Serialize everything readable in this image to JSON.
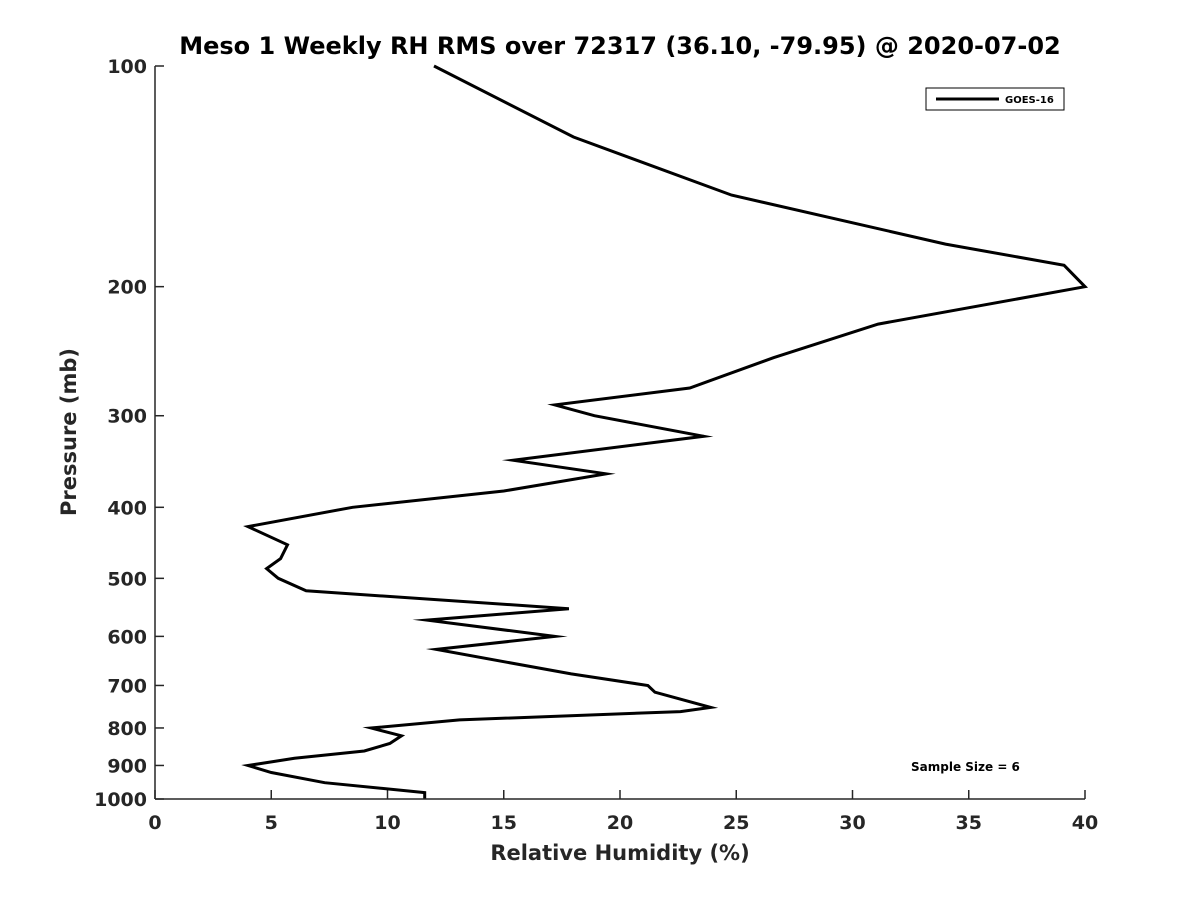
{
  "chart_data": {
    "type": "line",
    "title": "Meso 1 Weekly RH RMS over 72317 (36.10, -79.95) @ 2020-07-02",
    "xlabel": "Relative Humidity (%)",
    "ylabel": "Pressure (mb)",
    "xlim": [
      0,
      40
    ],
    "ylim": [
      100,
      1000
    ],
    "y_scale": "log",
    "y_reversed": true,
    "x_ticks": [
      0,
      5,
      10,
      15,
      20,
      25,
      30,
      35,
      40
    ],
    "x_tick_labels": [
      "0",
      "5",
      "10",
      "15",
      "20",
      "25",
      "30",
      "35",
      "40"
    ],
    "y_ticks": [
      100,
      200,
      300,
      400,
      500,
      600,
      700,
      800,
      900,
      1000
    ],
    "y_tick_labels": [
      "100",
      "200",
      "300",
      "400",
      "500",
      "600",
      "700",
      "800",
      "900",
      "1000"
    ],
    "grid": false,
    "legend_position": "top-right",
    "series": [
      {
        "name": "GOES-16",
        "color": "#000000",
        "x": [
          12.0,
          18.0,
          24.8,
          34.0,
          39.1,
          40.0,
          31.1,
          26.6,
          23.0,
          17.2,
          18.9,
          23.6,
          15.4,
          19.4,
          15.0,
          8.5,
          4.0,
          5.7,
          5.4,
          4.8,
          5.3,
          6.5,
          17.8,
          11.7,
          17.2,
          12.1,
          17.9,
          21.2,
          21.5,
          23.9,
          22.6,
          13.1,
          9.3,
          10.6,
          10.1,
          9.0,
          6.0,
          4.0,
          5.0,
          7.3,
          11.6,
          11.6
        ],
        "y": [
          100,
          125,
          150,
          175,
          187,
          200,
          225,
          250,
          275,
          290,
          300,
          320,
          345,
          360,
          380,
          400,
          425,
          450,
          470,
          485,
          500,
          520,
          550,
          570,
          600,
          625,
          675,
          700,
          715,
          750,
          760,
          780,
          800,
          820,
          840,
          860,
          880,
          900,
          920,
          950,
          980,
          1000
        ]
      }
    ],
    "annotations": [
      "Sample Size = 6"
    ]
  }
}
